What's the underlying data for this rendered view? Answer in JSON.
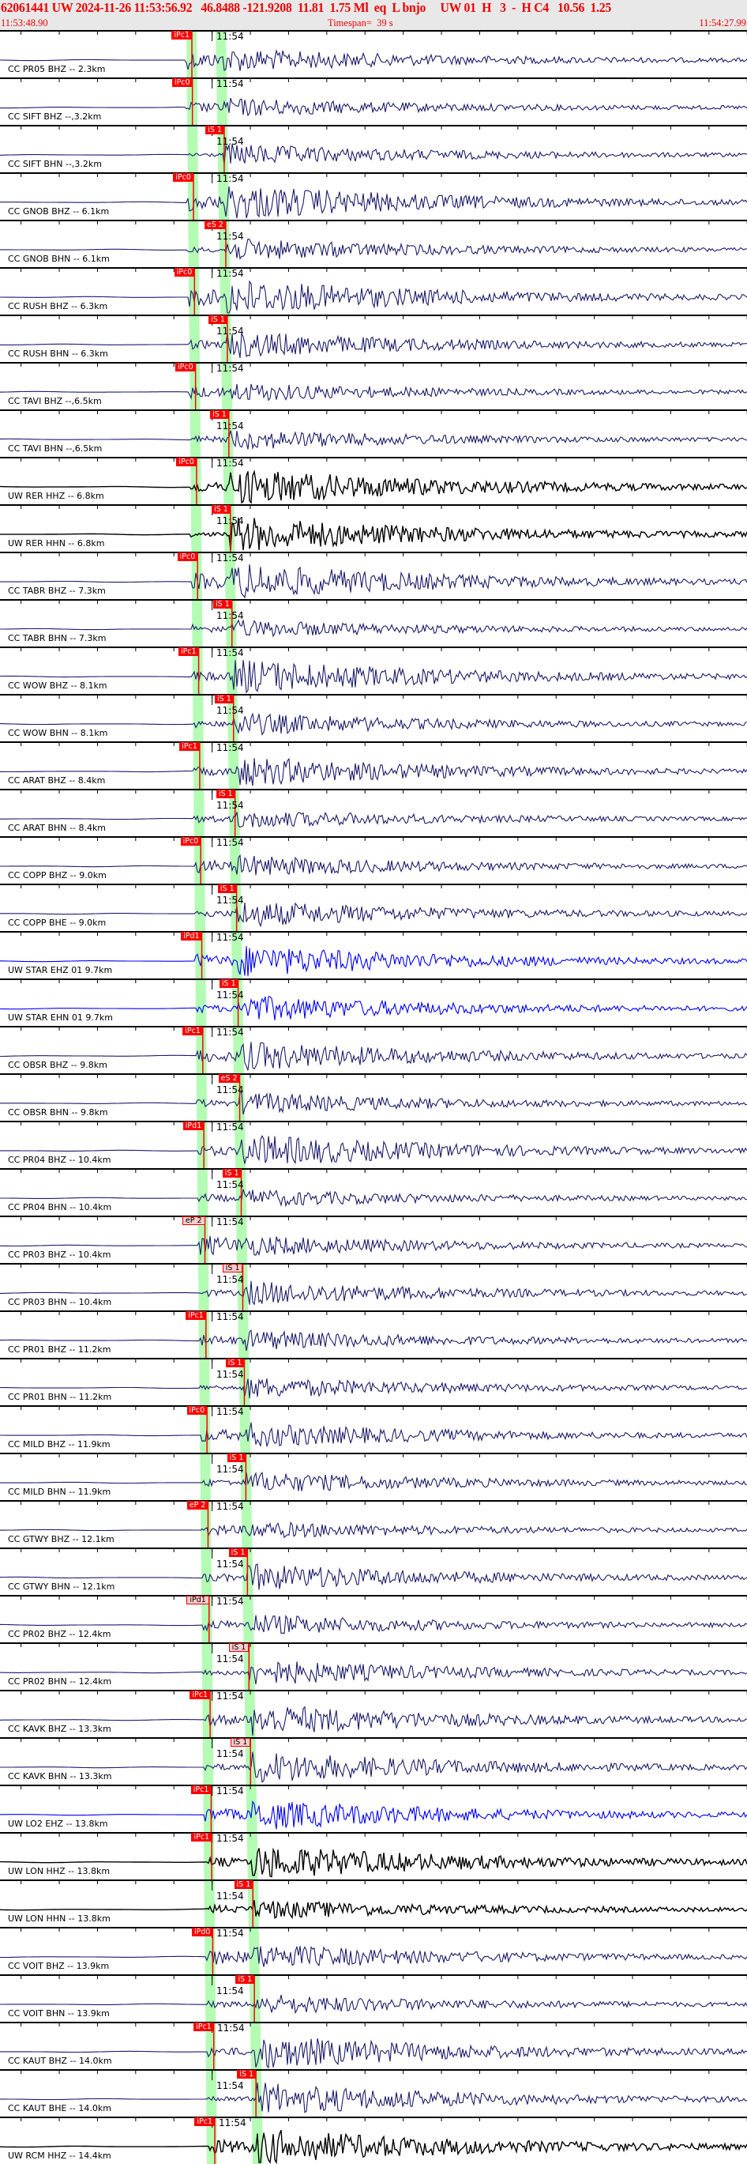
{
  "header": {
    "event_line": "62061441 UW 2024-11-26 11:53:56.92   46.8488 -121.9208  11.81  1.75 Ml  eq  L bnjo     UW 01  H   3  -  H C4   10.56  1.25",
    "start_time": "11:53:48.90",
    "timespan": "Timespan=  39 s",
    "end_time": "11:54:27.99"
  },
  "minute_label": "11:54",
  "colors": {
    "header_text": "#f00000",
    "header_bg": "#e8e8e8",
    "trace_navy": "#1c1c6c",
    "trace_black": "#000000",
    "trace_blue": "#0000ff",
    "pick": "#ff0000",
    "window_band": "#b4fcb4"
  },
  "traces": [
    {
      "label": "CC PR05 BHZ -- 2.3km",
      "pick": "iPc1",
      "phase": "P",
      "style": "solid",
      "color": "navy"
    },
    {
      "label": "CC SIFT BHZ --,3.2km",
      "pick": "iPc0",
      "phase": "P",
      "style": "solid",
      "color": "navy"
    },
    {
      "label": "CC SIFT BHN --,3.2km",
      "pick": "iS 1",
      "phase": "S",
      "style": "solid",
      "color": "navy"
    },
    {
      "label": "CC GNOB BHZ -- 6.1km",
      "pick": "iPc0",
      "phase": "P",
      "style": "solid",
      "color": "navy"
    },
    {
      "label": "CC GNOB BHN -- 6.1km",
      "pick": "eS 2",
      "phase": "S",
      "style": "solid",
      "color": "navy"
    },
    {
      "label": "CC RUSH BHZ -- 6.3km",
      "pick": "iPc0",
      "phase": "P",
      "style": "solid",
      "color": "navy"
    },
    {
      "label": "CC RUSH BHN -- 6.3km",
      "pick": "iS 1",
      "phase": "S",
      "style": "solid",
      "color": "navy"
    },
    {
      "label": "CC TAVI BHZ --,6.5km",
      "pick": "iPc0",
      "phase": "P",
      "style": "solid",
      "color": "navy"
    },
    {
      "label": "CC TAVI BHN --,6.5km",
      "pick": "iS 1",
      "phase": "S",
      "style": "solid",
      "color": "navy"
    },
    {
      "label": "UW RER HHZ -- 6.8km",
      "pick": "iPc0",
      "phase": "P",
      "style": "solid",
      "color": "black"
    },
    {
      "label": "UW RER HHN -- 6.8km",
      "pick": "iS 1",
      "phase": "S",
      "style": "solid",
      "color": "black"
    },
    {
      "label": "CC TABR BHZ -- 7.3km",
      "pick": "iPc0",
      "phase": "P",
      "style": "solid",
      "color": "navy"
    },
    {
      "label": "CC TABR BHN -- 7.3km",
      "pick": "iS 1",
      "phase": "S",
      "style": "solid",
      "color": "navy"
    },
    {
      "label": "CC WOW BHZ -- 8.1km",
      "pick": "iPc1",
      "phase": "P",
      "style": "solid",
      "color": "navy"
    },
    {
      "label": "CC WOW BHN -- 8.1km",
      "pick": "iS 1",
      "phase": "S",
      "style": "solid",
      "color": "navy"
    },
    {
      "label": "CC ARAT BHZ -- 8.4km",
      "pick": "iPc1",
      "phase": "P",
      "style": "solid",
      "color": "navy"
    },
    {
      "label": "CC ARAT BHN -- 8.4km",
      "pick": "iS 1",
      "phase": "S",
      "style": "solid",
      "color": "navy"
    },
    {
      "label": "CC COPP BHZ -- 9.0km",
      "pick": "iPc0",
      "phase": "P",
      "style": "solid",
      "color": "navy"
    },
    {
      "label": "CC COPP BHE -- 9.0km",
      "pick": "iS 1",
      "phase": "S",
      "style": "solid",
      "color": "navy"
    },
    {
      "label": "UW STAR EHZ 01 9.7km",
      "pick": "iPd1",
      "phase": "P",
      "style": "solid",
      "color": "blue"
    },
    {
      "label": "UW STAR EHN 01 9.7km",
      "pick": "iS 1",
      "phase": "S",
      "style": "solid",
      "color": "blue"
    },
    {
      "label": "CC OBSR BHZ -- 9.8km",
      "pick": "iPc1",
      "phase": "P",
      "style": "solid",
      "color": "navy"
    },
    {
      "label": "CC OBSR BHN -- 9.8km",
      "pick": "eS 2",
      "phase": "S",
      "style": "solid",
      "color": "navy"
    },
    {
      "label": "CC PR04 BHZ -- 10.4km",
      "pick": "iPd1",
      "phase": "P",
      "style": "solid",
      "color": "navy"
    },
    {
      "label": "CC PR04 BHN -- 10.4km",
      "pick": "iS 1",
      "phase": "S",
      "style": "solid",
      "color": "navy"
    },
    {
      "label": "CC PR03 BHZ -- 10.4km",
      "pick": "eP 2",
      "phase": "P",
      "style": "soft",
      "color": "navy"
    },
    {
      "label": "CC PR03 BHN -- 10.4km",
      "pick": "iS 1",
      "phase": "S",
      "style": "soft",
      "color": "navy"
    },
    {
      "label": "CC PR01 BHZ -- 11.2km",
      "pick": "iPc1",
      "phase": "P",
      "style": "solid",
      "color": "navy"
    },
    {
      "label": "CC PR01 BHN -- 11.2km",
      "pick": "iS 1",
      "phase": "S",
      "style": "solid",
      "color": "navy"
    },
    {
      "label": "CC MILD BHZ -- 11.9km",
      "pick": "iPc0",
      "phase": "P",
      "style": "solid",
      "color": "navy"
    },
    {
      "label": "CC MILD BHN -- 11.9km",
      "pick": "iS 1",
      "phase": "S",
      "style": "solid",
      "color": "navy"
    },
    {
      "label": "CC GTWY BHZ -- 12.1km",
      "pick": "eP 2",
      "phase": "P",
      "style": "solid",
      "color": "navy"
    },
    {
      "label": "CC GTWY BHN -- 12.1km",
      "pick": "iS 1",
      "phase": "S",
      "style": "solid",
      "color": "navy"
    },
    {
      "label": "CC PR02 BHZ -- 12.4km",
      "pick": "iPd1",
      "phase": "P",
      "style": "soft",
      "color": "navy"
    },
    {
      "label": "CC PR02 BHN -- 12.4km",
      "pick": "iS 1",
      "phase": "S",
      "style": "soft",
      "color": "navy"
    },
    {
      "label": "CC KAVK BHZ -- 13.3km",
      "pick": "iPc1",
      "phase": "P",
      "style": "solid",
      "color": "navy"
    },
    {
      "label": "CC KAVK BHN -- 13.3km",
      "pick": "iS 1",
      "phase": "S",
      "style": "soft",
      "color": "navy"
    },
    {
      "label": "UW LO2 EHZ -- 13.8km",
      "pick": "iPc1",
      "phase": "P",
      "style": "solid",
      "color": "blue"
    },
    {
      "label": "UW LON HHZ -- 13.8km",
      "pick": "iPc1",
      "phase": "P",
      "style": "solid",
      "color": "black"
    },
    {
      "label": "UW LON HHN -- 13.8km",
      "pick": "iS 1",
      "phase": "S",
      "style": "solid",
      "color": "black"
    },
    {
      "label": "CC VOIT BHZ -- 13.9km",
      "pick": "iPd0",
      "phase": "P",
      "style": "solid",
      "color": "navy"
    },
    {
      "label": "CC VOIT BHN -- 13.9km",
      "pick": "iS 1",
      "phase": "S",
      "style": "solid",
      "color": "navy"
    },
    {
      "label": "CC KAUT BHZ -- 14.0km",
      "pick": "iPc1",
      "phase": "P",
      "style": "solid",
      "color": "navy"
    },
    {
      "label": "CC KAUT BHE -- 14.0km",
      "pick": "iS 1",
      "phase": "S",
      "style": "solid",
      "color": "navy"
    },
    {
      "label": "UW RCM HHZ -- 14.4km",
      "pick": "iPc1",
      "phase": "P",
      "style": "solid",
      "color": "black"
    }
  ]
}
